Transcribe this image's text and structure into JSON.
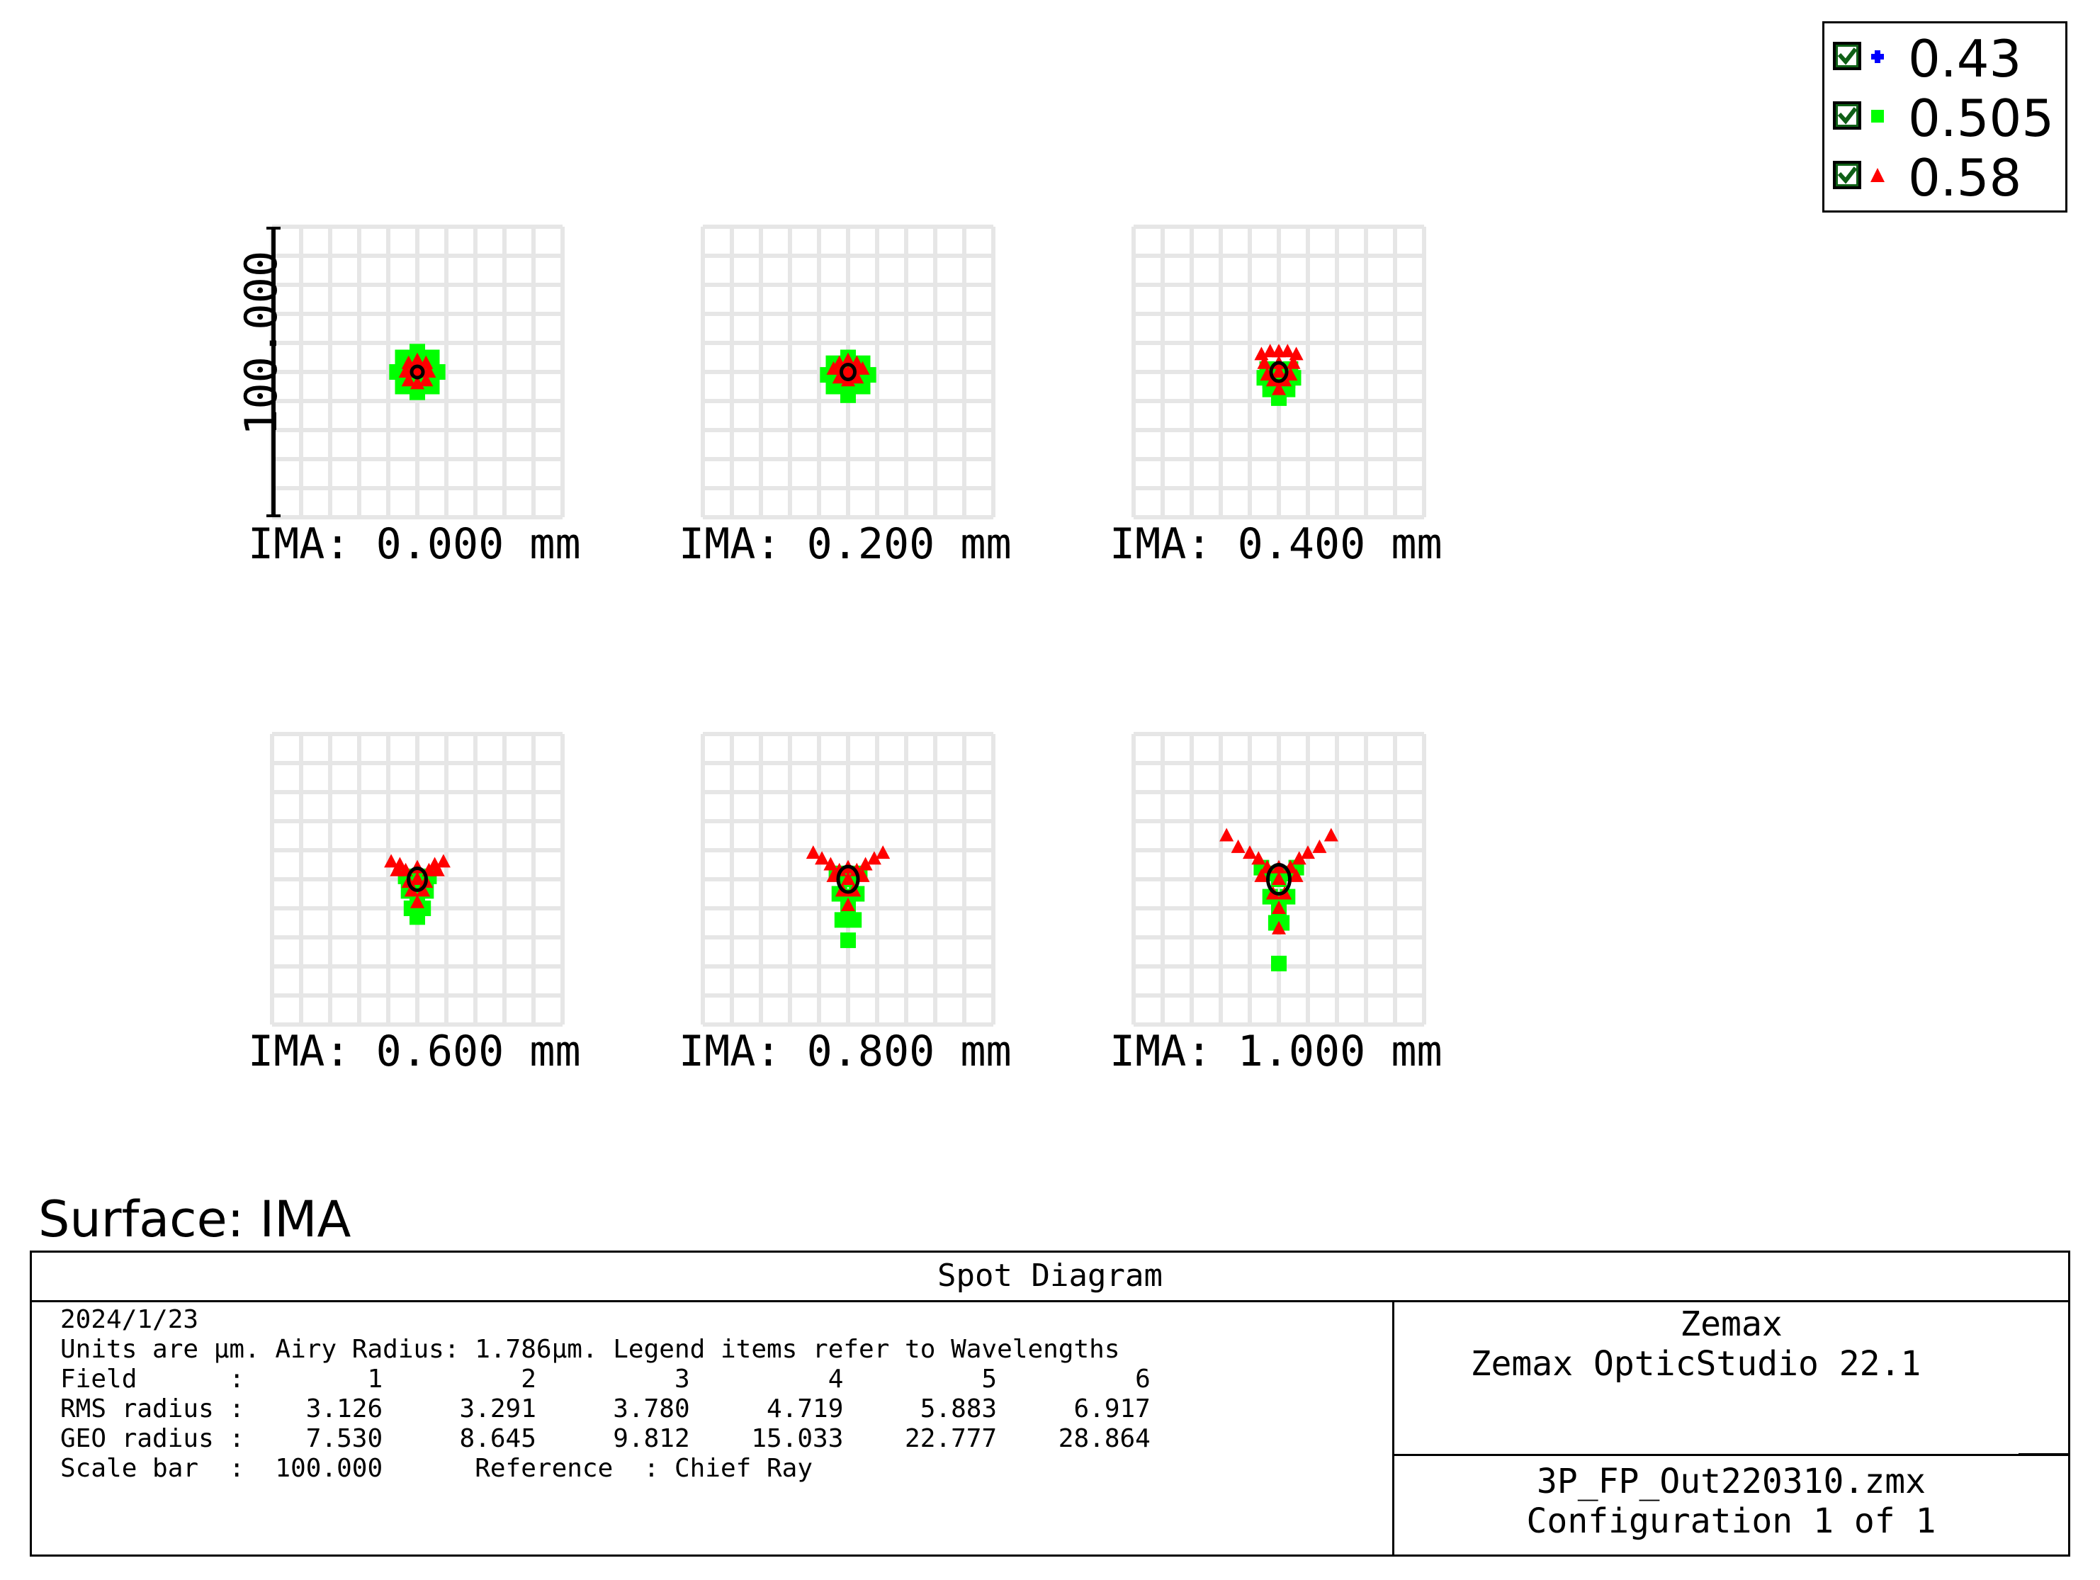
{
  "legend": {
    "items": [
      {
        "label": "0.43",
        "color": "#0000ff",
        "marker": "plus",
        "checked": true
      },
      {
        "label": "0.505",
        "color": "#00ff00",
        "marker": "square",
        "checked": true
      },
      {
        "label": "0.58",
        "color": "#ff0000",
        "marker": "triangle",
        "checked": true
      }
    ]
  },
  "chart_data": {
    "type": "scatter",
    "title": "Spot Diagram",
    "units": "µm",
    "scale_bar": 100.0,
    "scale_bar_label": "100.000",
    "grid": true,
    "reference": "Chief Ray",
    "panels": [
      {
        "label": "IMA: 0.000 mm",
        "field": 1,
        "rms_radius": 3.126,
        "geo_radius": 7.53,
        "series": [
          {
            "wavelength": "0.505",
            "points": [
              [
                0,
                0
              ],
              [
                -7,
                0
              ],
              [
                7,
                0
              ],
              [
                0,
                -7
              ],
              [
                0,
                7
              ],
              [
                -5,
                -5
              ],
              [
                5,
                5
              ],
              [
                -5,
                5
              ],
              [
                5,
                -5
              ],
              [
                -3,
                0
              ],
              [
                3,
                0
              ],
              [
                0,
                -3
              ],
              [
                0,
                3
              ]
            ]
          },
          {
            "wavelength": "0.58",
            "points": [
              [
                0,
                0
              ],
              [
                -4,
                0
              ],
              [
                4,
                0
              ],
              [
                0,
                -4
              ],
              [
                0,
                4
              ],
              [
                -3,
                -3
              ],
              [
                3,
                3
              ],
              [
                -3,
                3
              ],
              [
                3,
                -3
              ],
              [
                -2,
                0
              ],
              [
                2,
                0
              ]
            ]
          }
        ]
      },
      {
        "label": "IMA: 0.200 mm",
        "field": 2,
        "rms_radius": 3.291,
        "geo_radius": 8.645,
        "series": [
          {
            "wavelength": "0.505",
            "points": [
              [
                0,
                0
              ],
              [
                -7,
                -1
              ],
              [
                7,
                -1
              ],
              [
                0,
                -8
              ],
              [
                0,
                5
              ],
              [
                -5,
                -5
              ],
              [
                5,
                -5
              ],
              [
                -5,
                3
              ],
              [
                5,
                3
              ],
              [
                -3,
                -2
              ],
              [
                3,
                -2
              ],
              [
                0,
                -4
              ]
            ]
          },
          {
            "wavelength": "0.58",
            "points": [
              [
                0,
                0
              ],
              [
                -5,
                1
              ],
              [
                5,
                1
              ],
              [
                0,
                4
              ],
              [
                0,
                -3
              ],
              [
                -3,
                3
              ],
              [
                3,
                3
              ],
              [
                -3,
                -2
              ],
              [
                3,
                -2
              ],
              [
                -2,
                1
              ],
              [
                2,
                1
              ]
            ]
          }
        ]
      },
      {
        "label": "IMA: 0.400 mm",
        "field": 3,
        "rms_radius": 3.78,
        "geo_radius": 9.812,
        "series": [
          {
            "wavelength": "0.505",
            "points": [
              [
                0,
                0
              ],
              [
                -5,
                -2
              ],
              [
                5,
                -2
              ],
              [
                0,
                -9
              ],
              [
                0,
                -5
              ],
              [
                -3,
                -6
              ],
              [
                3,
                -6
              ],
              [
                -3,
                -3
              ],
              [
                3,
                -3
              ],
              [
                -4,
                1
              ],
              [
                4,
                1
              ]
            ]
          },
          {
            "wavelength": "0.58",
            "points": [
              [
                0,
                0
              ],
              [
                -6,
                6
              ],
              [
                6,
                6
              ],
              [
                0,
                7
              ],
              [
                -3,
                7
              ],
              [
                3,
                7
              ],
              [
                -5,
                3
              ],
              [
                5,
                3
              ],
              [
                0,
                3
              ],
              [
                -2,
                -3
              ],
              [
                2,
                -3
              ],
              [
                0,
                -6
              ],
              [
                -4,
                -1
              ],
              [
                4,
                -1
              ]
            ]
          }
        ]
      },
      {
        "label": "IMA: 0.600 mm",
        "field": 4,
        "rms_radius": 4.719,
        "geo_radius": 15.033,
        "series": [
          {
            "wavelength": "0.505",
            "points": [
              [
                0,
                0
              ],
              [
                -3,
                -4
              ],
              [
                3,
                -4
              ],
              [
                0,
                -8
              ],
              [
                0,
                -13
              ],
              [
                -2,
                -10
              ],
              [
                2,
                -10
              ],
              [
                -4,
                1
              ],
              [
                4,
                1
              ],
              [
                0,
                -5
              ]
            ]
          },
          {
            "wavelength": "0.58",
            "points": [
              [
                0,
                0
              ],
              [
                -9,
                6
              ],
              [
                9,
                6
              ],
              [
                -6,
                5
              ],
              [
                6,
                5
              ],
              [
                -4,
                3
              ],
              [
                4,
                3
              ],
              [
                0,
                4
              ],
              [
                -7,
                3
              ],
              [
                7,
                3
              ],
              [
                -2,
                -4
              ],
              [
                2,
                -4
              ],
              [
                0,
                -8
              ],
              [
                -3,
                -1
              ],
              [
                3,
                -1
              ]
            ]
          }
        ]
      },
      {
        "label": "IMA: 0.800 mm",
        "field": 5,
        "rms_radius": 5.883,
        "geo_radius": 22.777,
        "series": [
          {
            "wavelength": "0.505",
            "points": [
              [
                0,
                0
              ],
              [
                -3,
                -5
              ],
              [
                3,
                -5
              ],
              [
                0,
                -10
              ],
              [
                -2,
                -14
              ],
              [
                2,
                -14
              ],
              [
                0,
                -21
              ],
              [
                -4,
                2
              ],
              [
                4,
                2
              ],
              [
                0,
                -6
              ]
            ]
          },
          {
            "wavelength": "0.58",
            "points": [
              [
                0,
                0
              ],
              [
                -12,
                9
              ],
              [
                12,
                9
              ],
              [
                -9,
                7
              ],
              [
                9,
                7
              ],
              [
                -6,
                5
              ],
              [
                6,
                5
              ],
              [
                -3,
                3
              ],
              [
                3,
                3
              ],
              [
                0,
                4
              ],
              [
                -2,
                -4
              ],
              [
                2,
                -4
              ],
              [
                0,
                -9
              ],
              [
                -5,
                1
              ],
              [
                5,
                1
              ]
            ]
          }
        ]
      },
      {
        "label": "IMA: 1.000 mm",
        "field": 6,
        "rms_radius": 6.917,
        "geo_radius": 28.864,
        "series": [
          {
            "wavelength": "0.505",
            "points": [
              [
                0,
                0
              ],
              [
                -3,
                -6
              ],
              [
                3,
                -6
              ],
              [
                0,
                -11
              ],
              [
                -1,
                -15
              ],
              [
                1,
                -15
              ],
              [
                0,
                -29
              ],
              [
                -4,
                2
              ],
              [
                4,
                2
              ],
              [
                -6,
                4
              ],
              [
                6,
                4
              ],
              [
                0,
                -7
              ]
            ]
          },
          {
            "wavelength": "0.58",
            "points": [
              [
                0,
                0
              ],
              [
                -18,
                15
              ],
              [
                18,
                15
              ],
              [
                -14,
                11
              ],
              [
                14,
                11
              ],
              [
                -10,
                9
              ],
              [
                10,
                9
              ],
              [
                -7,
                7
              ],
              [
                7,
                7
              ],
              [
                -4,
                4
              ],
              [
                4,
                4
              ],
              [
                0,
                4
              ],
              [
                0,
                -10
              ],
              [
                0,
                -17
              ],
              [
                -2,
                -5
              ],
              [
                2,
                -5
              ],
              [
                -6,
                1
              ],
              [
                6,
                1
              ]
            ]
          }
        ]
      }
    ]
  },
  "surface_title": "Surface: IMA",
  "info": {
    "title": "Spot Diagram",
    "lines": [
      "2024/1/23",
      "Units are μm. Airy Radius: 1.786μm. Legend items refer to Wavelengths",
      "Field      :        1         2         3         4         5         6",
      "RMS radius :    3.126     3.291     3.780     4.719     5.883     6.917",
      "GEO radius :    7.530     8.645     9.812    15.033    22.777    28.864",
      "Scale bar  :  100.000      Reference  : Chief Ray"
    ],
    "company": "Zemax",
    "product": "Zemax OpticStudio 22.1",
    "file": "3P_FP_Out220310.zmx",
    "configuration": "Configuration 1 of 1"
  }
}
